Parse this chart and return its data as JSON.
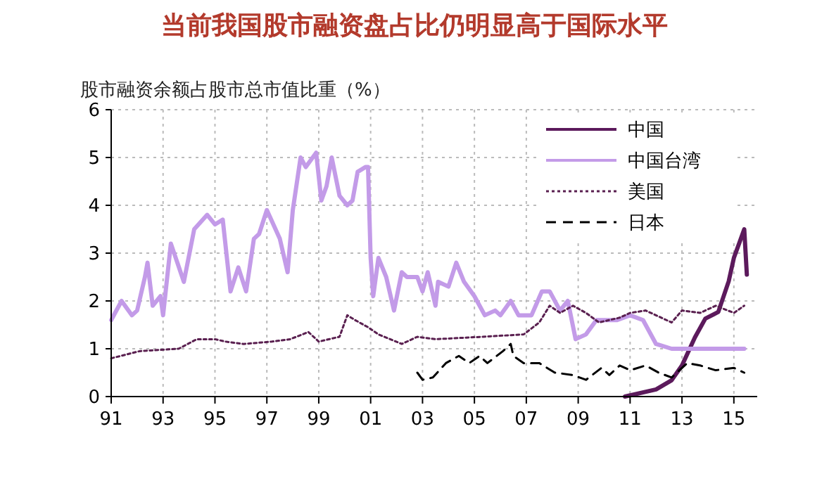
{
  "chart_data": {
    "type": "line",
    "title": "当前我国股市融资盘占比仍明显高于国际水平",
    "ylabel": "股市融资余额占股市总市值比重（%）",
    "xlim": [
      1991,
      2015.9
    ],
    "xticks": [
      {
        "value": 1991,
        "label": "91"
      },
      {
        "value": 1993,
        "label": "93"
      },
      {
        "value": 1995,
        "label": "95"
      },
      {
        "value": 1997,
        "label": "97"
      },
      {
        "value": 1999,
        "label": "99"
      },
      {
        "value": 2001,
        "label": "01"
      },
      {
        "value": 2003,
        "label": "03"
      },
      {
        "value": 2005,
        "label": "05"
      },
      {
        "value": 2007,
        "label": "07"
      },
      {
        "value": 2009,
        "label": "09"
      },
      {
        "value": 2011,
        "label": "11"
      },
      {
        "value": 2013,
        "label": "13"
      },
      {
        "value": 2015,
        "label": "15"
      }
    ],
    "ylim": [
      0,
      6
    ],
    "yticks": [
      0,
      1,
      2,
      3,
      4,
      5,
      6
    ],
    "grid": true,
    "legend": "top right",
    "series": [
      {
        "name": "中国",
        "color": "#5c1a5c",
        "line_style": "solid",
        "x": [
          2010.8,
          2012.0,
          2012.6,
          2013.0,
          2013.5,
          2013.9,
          2014.4,
          2014.8,
          2015.0,
          2015.2,
          2015.4,
          2015.5
        ],
        "values": [
          0,
          0.15,
          0.34,
          0.65,
          1.24,
          1.63,
          1.77,
          2.41,
          2.9,
          3.2,
          3.5,
          2.55
        ]
      },
      {
        "name": "中国台湾",
        "color": "#c39be8",
        "line_style": "solid",
        "x": [
          1991.0,
          1991.4,
          1991.8,
          1992.0,
          1992.3,
          1992.4,
          1992.6,
          1992.9,
          1993.0,
          1993.3,
          1993.8,
          1994.2,
          1994.7,
          1995.0,
          1995.3,
          1995.6,
          1995.9,
          1996.2,
          1996.5,
          1996.7,
          1997.0,
          1997.5,
          1997.8,
          1998.0,
          1998.3,
          1998.5,
          1998.9,
          1999.1,
          1999.3,
          1999.5,
          1999.8,
          2000.1,
          2000.3,
          2000.5,
          2000.8,
          2000.9,
          2001.0,
          2001.1,
          2001.3,
          2001.6,
          2001.9,
          2002.2,
          2002.4,
          2002.8,
          2003.0,
          2003.2,
          2003.5,
          2003.6,
          2004.0,
          2004.3,
          2004.6,
          2005.0,
          2005.4,
          2005.8,
          2006.0,
          2006.4,
          2006.7,
          2007.2,
          2007.6,
          2007.9,
          2008.3,
          2008.6,
          2008.9,
          2009.3,
          2009.7,
          2010.5,
          2011.0,
          2011.5,
          2012.0,
          2012.6,
          2013.2,
          2013.7,
          2014.5,
          2015.4
        ],
        "values": [
          1.6,
          2.0,
          1.7,
          1.8,
          2.5,
          2.8,
          1.9,
          2.1,
          1.7,
          3.2,
          2.4,
          3.5,
          3.8,
          3.6,
          3.7,
          2.2,
          2.7,
          2.2,
          3.3,
          3.4,
          3.9,
          3.3,
          2.6,
          3.9,
          5.0,
          4.8,
          5.1,
          4.1,
          4.4,
          5.0,
          4.2,
          4.0,
          4.1,
          4.7,
          4.8,
          4.8,
          2.9,
          2.1,
          2.9,
          2.5,
          1.8,
          2.6,
          2.5,
          2.5,
          2.2,
          2.6,
          1.9,
          2.4,
          2.3,
          2.8,
          2.4,
          2.1,
          1.7,
          1.8,
          1.7,
          2.0,
          1.7,
          1.7,
          2.2,
          2.2,
          1.8,
          2.0,
          1.2,
          1.3,
          1.6,
          1.6,
          1.7,
          1.6,
          1.1,
          1.0,
          1.0,
          1.0,
          1.0,
          1.0
        ]
      },
      {
        "name": "美国",
        "color": "#5a2050",
        "line_style": "dotted",
        "x": [
          1991.0,
          1992.1,
          1993.6,
          1994.3,
          1995.0,
          1995.4,
          1996.1,
          1997.2,
          1997.9,
          1998.6,
          1999.0,
          1999.8,
          2000.1,
          2000.4,
          2000.9,
          2001.3,
          2002.2,
          2002.8,
          2003.5,
          2005.3,
          2006.9,
          2007.5,
          2007.9,
          2008.3,
          2008.8,
          2009.3,
          2009.8,
          2010.6,
          2011.0,
          2011.6,
          2012.6,
          2013.0,
          2013.7,
          2014.3,
          2015.0,
          2015.4
        ],
        "values": [
          0.8,
          0.95,
          1.0,
          1.2,
          1.2,
          1.15,
          1.1,
          1.15,
          1.2,
          1.35,
          1.15,
          1.25,
          1.7,
          1.6,
          1.45,
          1.3,
          1.1,
          1.25,
          1.2,
          1.25,
          1.3,
          1.55,
          1.9,
          1.75,
          1.9,
          1.75,
          1.55,
          1.65,
          1.75,
          1.8,
          1.55,
          1.8,
          1.75,
          1.9,
          1.75,
          1.9
        ]
      },
      {
        "name": "日本",
        "color": "#000000",
        "line_style": "dashed",
        "x": [
          2002.8,
          2003.0,
          2003.4,
          2003.9,
          2004.4,
          2004.8,
          2005.2,
          2005.5,
          2006.1,
          2006.4,
          2006.5,
          2006.9,
          2007.5,
          2008.1,
          2008.8,
          2009.3,
          2009.9,
          2010.2,
          2010.6,
          2011.0,
          2011.6,
          2012.1,
          2012.6,
          2013.2,
          2013.7,
          2014.3,
          2015.0,
          2015.4
        ],
        "values": [
          0.5,
          0.35,
          0.4,
          0.7,
          0.85,
          0.7,
          0.85,
          0.7,
          0.95,
          1.1,
          0.85,
          0.7,
          0.7,
          0.5,
          0.45,
          0.35,
          0.6,
          0.45,
          0.65,
          0.55,
          0.65,
          0.5,
          0.4,
          0.7,
          0.65,
          0.55,
          0.6,
          0.5
        ]
      }
    ]
  }
}
